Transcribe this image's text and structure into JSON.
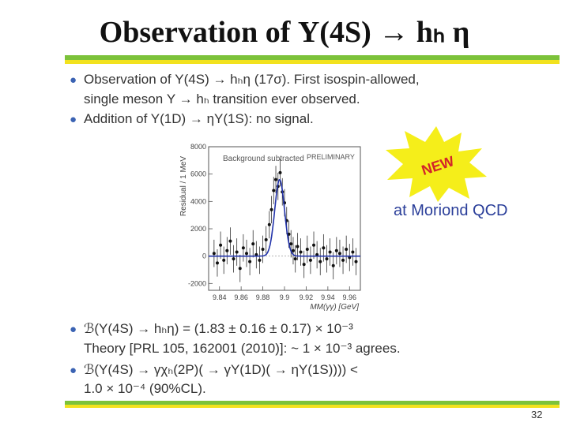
{
  "slide": {
    "title": "Observation of Υ(4S) → hₕ η",
    "page_number": "32"
  },
  "bullets_top": [
    {
      "line1": "Observation of Υ(4S) → hₕη (17σ). First isospin-allowed,",
      "line2": "single meson Υ → hₕ transition ever observed."
    },
    {
      "line1": "Addition of Y(1D) → ηY(1S): no signal."
    }
  ],
  "bullets_bottom": [
    {
      "line1": "ℬ(Υ(4S) → hₕη) = (1.83 ± 0.16 ± 0.17) × 10⁻³",
      "line2": "Theory [PRL 105, 162001 (2010)]: ~ 1 × 10⁻³ agrees."
    },
    {
      "line1": "ℬ(Υ(4S) → γχₕ(2P)( → γΥ(1D)( → ηΥ(1S)))) <",
      "line2": "1.0 × 10⁻⁴ (90%CL)."
    }
  ],
  "badge": {
    "text": "NEW",
    "caption": "at Moriond QCD"
  },
  "chart_data": {
    "type": "scatter",
    "annotations": [
      "Background subtracted",
      "PRELIMINARY"
    ],
    "xlabel": "MM(γγ) [GeV]",
    "ylabel": "Residual / 1 MeV",
    "xlim": [
      9.83,
      9.97
    ],
    "ylim": [
      -2500,
      8000
    ],
    "x_ticks": [
      9.84,
      9.86,
      9.88,
      9.9,
      9.92,
      9.94,
      9.96
    ],
    "x_tick_labels": [
      "9.84",
      "9.86",
      "9.88",
      "9.9",
      "9.92",
      "9.94",
      "9.96"
    ],
    "y_ticks": [
      -2000,
      0,
      2000,
      4000,
      6000,
      8000
    ],
    "y_tick_labels": [
      "-2000",
      "0",
      "2000",
      "4000",
      "6000",
      "8000"
    ],
    "series": [
      {
        "type": "points_with_errors",
        "x": [
          9.835,
          9.838,
          9.841,
          9.844,
          9.847,
          9.85,
          9.853,
          9.856,
          9.859,
          9.862,
          9.865,
          9.868,
          9.871,
          9.874,
          9.877,
          9.88,
          9.883,
          9.886,
          9.888,
          9.89,
          9.892,
          9.894,
          9.896,
          9.898,
          9.9,
          9.902,
          9.904,
          9.906,
          9.908,
          9.91,
          9.912,
          9.915,
          9.918,
          9.921,
          9.924,
          9.927,
          9.93,
          9.933,
          9.936,
          9.939,
          9.942,
          9.945,
          9.948,
          9.951,
          9.954,
          9.957,
          9.96,
          9.963,
          9.966
        ],
        "y": [
          200,
          -500,
          800,
          -300,
          400,
          1100,
          -200,
          300,
          -900,
          600,
          200,
          -400,
          900,
          100,
          -300,
          500,
          1200,
          2300,
          3400,
          4800,
          5600,
          5100,
          6100,
          4700,
          3900,
          2600,
          1600,
          900,
          400,
          -200,
          700,
          300,
          -600,
          500,
          -300,
          800,
          100,
          -400,
          600,
          -200,
          300,
          -700,
          400,
          200,
          -300,
          500,
          -100,
          300,
          -400
        ],
        "yerr": 1000
      },
      {
        "type": "fit_curve",
        "peak_x": 9.8955,
        "peak_y": 5600,
        "sigma": 0.0045
      }
    ]
  }
}
